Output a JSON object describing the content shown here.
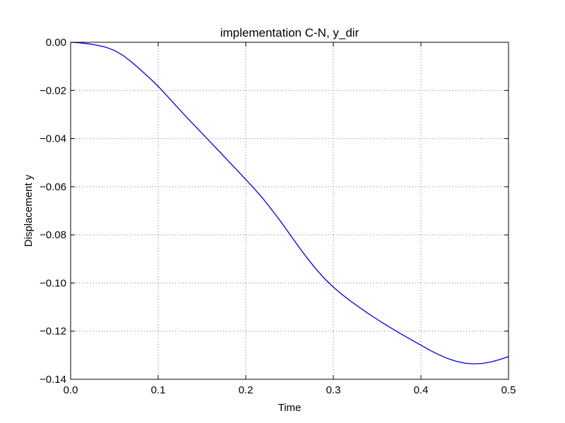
{
  "chart_data": {
    "type": "line",
    "title": "implementation C-N, y_dir",
    "xlabel": "Time",
    "ylabel": "Displacement y",
    "xlim": [
      0,
      0.5
    ],
    "ylim": [
      -0.14,
      0.0
    ],
    "xticks": [
      0.0,
      0.1,
      0.2,
      0.3,
      0.4,
      0.5
    ],
    "xtick_labels": [
      "0.0",
      "0.1",
      "0.2",
      "0.3",
      "0.4",
      "0.5"
    ],
    "yticks": [
      0.0,
      -0.02,
      -0.04,
      -0.06,
      -0.08,
      -0.1,
      -0.12,
      -0.14
    ],
    "ytick_labels": [
      "0.00",
      "−0.02",
      "−0.04",
      "−0.06",
      "−0.08",
      "−0.10",
      "−0.12",
      "−0.14"
    ],
    "grid": true,
    "series": [
      {
        "color": "#0000dd",
        "x": [
          0.0,
          0.01,
          0.02,
          0.03,
          0.04,
          0.05,
          0.06,
          0.07,
          0.08,
          0.09,
          0.1,
          0.11,
          0.12,
          0.13,
          0.14,
          0.15,
          0.16,
          0.17,
          0.18,
          0.19,
          0.2,
          0.21,
          0.22,
          0.23,
          0.24,
          0.25,
          0.26,
          0.27,
          0.28,
          0.29,
          0.3,
          0.31,
          0.32,
          0.33,
          0.34,
          0.35,
          0.36,
          0.37,
          0.38,
          0.39,
          0.4,
          0.41,
          0.42,
          0.43,
          0.44,
          0.45,
          0.46,
          0.47,
          0.48,
          0.49,
          0.5
        ],
        "y": [
          0.0,
          -0.0002,
          -0.0006,
          -0.0012,
          -0.002,
          -0.0034,
          -0.0055,
          -0.0083,
          -0.0115,
          -0.0148,
          -0.0183,
          -0.0222,
          -0.0262,
          -0.0302,
          -0.034,
          -0.0378,
          -0.0416,
          -0.0454,
          -0.0493,
          -0.0531,
          -0.057,
          -0.0609,
          -0.0651,
          -0.0697,
          -0.0745,
          -0.0796,
          -0.0847,
          -0.0896,
          -0.0941,
          -0.0982,
          -0.1017,
          -0.1048,
          -0.1076,
          -0.1102,
          -0.1127,
          -0.1151,
          -0.1174,
          -0.1196,
          -0.1217,
          -0.1238,
          -0.1258,
          -0.1279,
          -0.1297,
          -0.1313,
          -0.1325,
          -0.1333,
          -0.1336,
          -0.1334,
          -0.1328,
          -0.1318,
          -0.1306
        ]
      }
    ]
  }
}
